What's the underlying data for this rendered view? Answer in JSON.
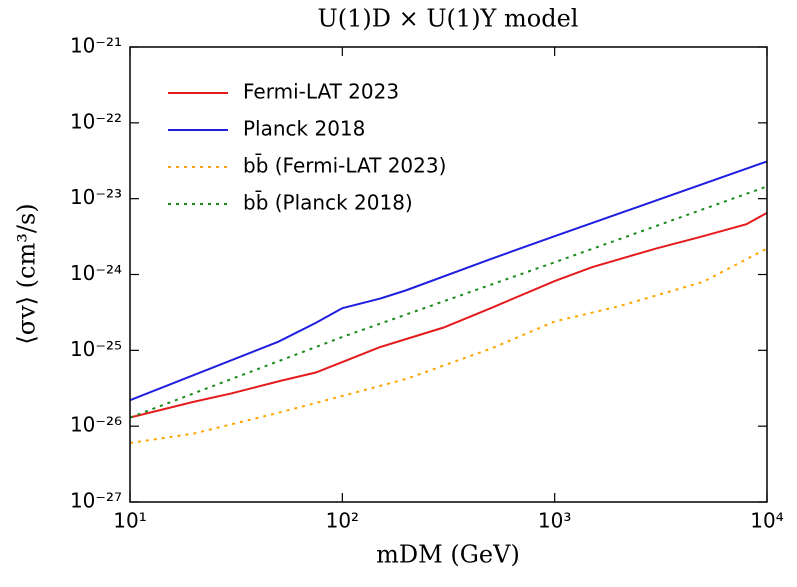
{
  "chart_data": {
    "type": "line",
    "title": "U(1)D × U(1)Y model",
    "x_label": "mDM (GeV)",
    "y_label": "⟨σv⟩ (cm³/s)",
    "xscale": "log",
    "yscale": "log",
    "xlim": [
      10,
      10000
    ],
    "ylim": [
      1e-27,
      1e-21
    ],
    "xticks": [
      {
        "value": 10,
        "label": "10¹"
      },
      {
        "value": 100,
        "label": "10²"
      },
      {
        "value": 1000,
        "label": "10³"
      },
      {
        "value": 10000,
        "label": "10⁴"
      }
    ],
    "yticks": [
      {
        "value": 1e-27,
        "label": "10⁻²⁷"
      },
      {
        "value": 1e-26,
        "label": "10⁻²⁶"
      },
      {
        "value": 1e-25,
        "label": "10⁻²⁵"
      },
      {
        "value": 1e-24,
        "label": "10⁻²⁴"
      },
      {
        "value": 1e-23,
        "label": "10⁻²³"
      },
      {
        "value": 1e-22,
        "label": "10⁻²²"
      },
      {
        "value": 1e-21,
        "label": "10⁻²¹"
      }
    ],
    "legend": "upper left",
    "series": [
      {
        "name": "Fermi-LAT 2023",
        "color": "#e41a1c",
        "linestyle": "solid",
        "x": [
          10,
          20,
          30,
          50,
          75,
          100,
          150,
          300,
          500,
          1000,
          1500,
          3000,
          5000,
          8000,
          10000
        ],
        "values": [
          1.3e-26,
          2.1e-26,
          2.7e-26,
          3.9e-26,
          5.1e-26,
          7e-26,
          1.1e-25,
          2e-25,
          3.6e-25,
          8.2e-25,
          1.25e-24,
          2.2e-24,
          3.2e-24,
          4.6e-24,
          6.5e-24
        ]
      },
      {
        "name": "Planck 2018",
        "color": "#1f1fe0",
        "linestyle": "solid",
        "x": [
          10,
          50,
          75,
          100,
          150,
          200,
          500,
          1000,
          10000
        ],
        "values": [
          2.2e-26,
          1.3e-25,
          2.3e-25,
          3.6e-25,
          4.8e-25,
          6.2e-25,
          1.6e-24,
          3.2e-24,
          3.1e-23
        ]
      },
      {
        "name": "bb̄ (Fermi-LAT 2023)",
        "color": "#ffa500",
        "linestyle": "dotted",
        "x": [
          10,
          20,
          50,
          100,
          200,
          500,
          1000,
          2000,
          5000,
          10000
        ],
        "values": [
          6e-27,
          8e-27,
          1.5e-26,
          2.5e-26,
          4.2e-26,
          1.05e-25,
          2.4e-25,
          3.8e-25,
          8e-25,
          2.2e-24
        ]
      },
      {
        "name": "bb̄ (Planck 2018)",
        "color": "#1a8a1a",
        "linestyle": "dotted",
        "x": [
          10,
          100,
          1000,
          10000
        ],
        "values": [
          1.3e-26,
          1.5e-25,
          1.45e-24,
          1.45e-23
        ]
      }
    ]
  }
}
